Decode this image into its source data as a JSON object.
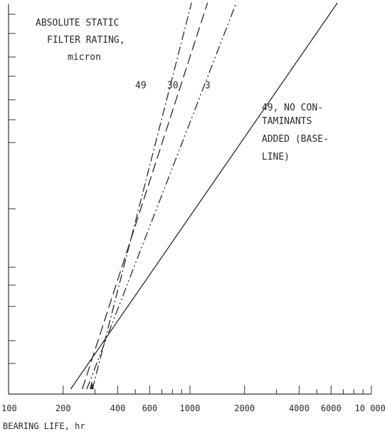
{
  "chart_data": {
    "type": "line",
    "title": "",
    "xlabel": "BEARING LIFE, hr",
    "ylabel": "",
    "x_scale": "log",
    "xlim": [
      100,
      10000
    ],
    "x_ticks": [
      100,
      200,
      400,
      600,
      1000,
      2000,
      4000,
      6000,
      10000
    ],
    "x_tick_labels": [
      "100",
      "200",
      "400",
      "600",
      "1000",
      "2000",
      "4000",
      "6000",
      "10 000"
    ],
    "y_tick_labels_shown": false,
    "grid": false,
    "legend_title": [
      "ABSOLUTE STATIC",
      "FILTER RATING,",
      "micron"
    ],
    "series": [
      {
        "name": "49",
        "style": "long-dash",
        "x": [
          255,
          1250
        ]
      },
      {
        "name": "30",
        "style": "dash-dot",
        "x": [
          290,
          1020
        ]
      },
      {
        "name": "3",
        "style": "dash-dot-dot",
        "x": [
          270,
          1800
        ]
      },
      {
        "name": "49, NO CONTAMINANTS ADDED (BASELINE)",
        "style": "solid",
        "x": [
          220,
          6500
        ]
      }
    ],
    "annotations": {
      "line_labels": [
        "49",
        "30",
        "3"
      ],
      "baseline_label": [
        "49, NO CON-",
        "TAMINANTS",
        "ADDED (BASE-",
        "LINE)"
      ]
    }
  }
}
